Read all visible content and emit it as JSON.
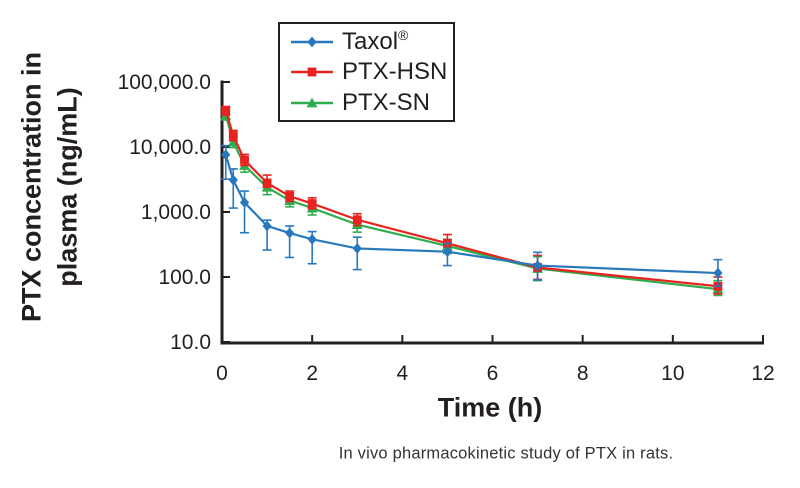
{
  "figure": {
    "caption": "In vivo pharmacokinetic study of PTX in rats."
  },
  "chart_data": {
    "type": "line",
    "title": "",
    "xlabel": "Time (h)",
    "ylabel": "PTX concentration in plasma (ng/mL)",
    "ylabel_line1": "PTX concentration in",
    "ylabel_line2": "plasma (ng/mL)",
    "y_scale": "log",
    "grid": false,
    "legend_position": "top-center",
    "xlim": [
      0,
      12
    ],
    "ylim": [
      10,
      100000
    ],
    "x_ticks": {
      "values": [
        0,
        2,
        4,
        6,
        8,
        10,
        12
      ],
      "labels": [
        "0",
        "2",
        "4",
        "6",
        "8",
        "10",
        "12"
      ]
    },
    "y_ticks": {
      "values": [
        100000,
        10000,
        1000,
        100,
        10
      ],
      "labels": [
        "100,000.0",
        "10,000.0",
        "1,000.0",
        "100.0",
        "10.0"
      ]
    },
    "x": [
      0.083,
      0.25,
      0.5,
      1,
      1.5,
      2,
      3,
      5,
      7,
      11
    ],
    "series": [
      {
        "name": "Taxol®",
        "key": "taxol",
        "color": "#2878BE",
        "marker": "diamond",
        "values": [
          7600,
          3100,
          1400,
          610,
          475,
          380,
          275,
          245,
          150,
          115
        ],
        "err_lo": [
          3200,
          1150,
          480,
          260,
          200,
          160,
          130,
          150,
          90,
          72
        ],
        "err_hi": [
          10500,
          4600,
          2100,
          750,
          610,
          500,
          410,
          330,
          240,
          185
        ]
      },
      {
        "name": "PTX-HSN",
        "key": "ptx-hsn",
        "color": "#E8231F",
        "marker": "square",
        "values": [
          36000,
          15000,
          6300,
          2800,
          1750,
          1350,
          760,
          330,
          140,
          72
        ],
        "err_lo": [
          31000,
          12500,
          5200,
          2400,
          1450,
          1120,
          620,
          250,
          92,
          55
        ],
        "err_hi": [
          42000,
          18000,
          7700,
          3700,
          2100,
          1650,
          940,
          450,
          215,
          100
        ]
      },
      {
        "name": "PTX-SN",
        "key": "ptx-sn",
        "color": "#2EAD4E",
        "marker": "triangle",
        "values": [
          31000,
          12000,
          5200,
          2400,
          1500,
          1150,
          640,
          300,
          135,
          65
        ],
        "err_lo": [
          26000,
          9800,
          4100,
          1850,
          1200,
          900,
          490,
          230,
          88,
          52
        ],
        "err_hi": [
          36000,
          14500,
          6400,
          3000,
          1850,
          1400,
          820,
          380,
          205,
          88
        ]
      }
    ]
  }
}
